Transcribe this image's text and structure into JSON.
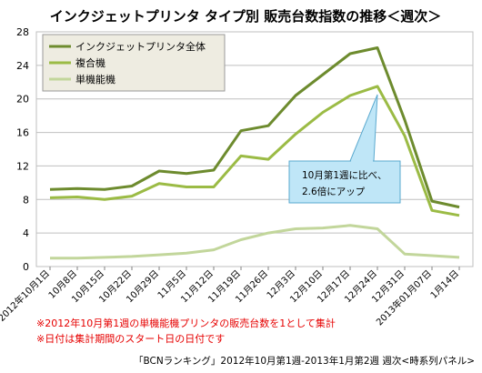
{
  "chart_data": {
    "type": "line",
    "title": "インクジェットプリンタ タイプ別 販売台数指数の推移＜週次＞",
    "xlabel": "",
    "ylabel": "",
    "ylim": [
      0,
      28
    ],
    "yticks": [
      0,
      4,
      8,
      12,
      16,
      20,
      24,
      28
    ],
    "grid": true,
    "legend_position": "top-left",
    "categories": [
      "2012年10月1日",
      "10月8日",
      "10月15日",
      "10月22日",
      "10月29日",
      "11月5日",
      "11月12日",
      "11月19日",
      "11月26日",
      "12月3日",
      "12月10日",
      "12月17日",
      "12月24日",
      "12月31日",
      "2013年01月07日",
      "1月14日"
    ],
    "series": [
      {
        "name": "インクジェットプリンタ全体",
        "color": "#6d8b2e",
        "values": [
          9.2,
          9.3,
          9.2,
          9.6,
          11.4,
          11.1,
          11.5,
          16.2,
          16.8,
          20.4,
          22.9,
          25.4,
          26.1,
          17.5,
          7.8,
          7.1
        ]
      },
      {
        "name": "複合機",
        "color": "#9bbb45",
        "values": [
          8.2,
          8.3,
          8.0,
          8.4,
          9.9,
          9.5,
          9.5,
          13.2,
          12.8,
          15.8,
          18.4,
          20.4,
          21.5,
          15.6,
          6.7,
          6.1
        ]
      },
      {
        "name": "単機能機",
        "color": "#c2d69b",
        "values": [
          1.0,
          1.0,
          1.1,
          1.2,
          1.4,
          1.6,
          2.0,
          3.2,
          4.0,
          4.5,
          4.6,
          4.9,
          4.5,
          1.5,
          1.3,
          1.1
        ]
      }
    ],
    "annotation": [
      "10月第1週に比べ、",
      "2.6倍にアップ"
    ]
  },
  "notes": [
    "※2012年10月第1週の単機能機プリンタの販売台数を1として集計",
    "※日付は集計期間のスタート日の日付です"
  ],
  "source": "「BCNランキング」2012年10月第1週-2013年1月第2週 週次<時系列パネル>",
  "colors": {
    "grid": "#bfbfbf",
    "legend_bg": "#eeece1",
    "callout_bg": "#bfe6f7",
    "callout_border": "#5aa9cf",
    "note_red": "#e60000"
  }
}
